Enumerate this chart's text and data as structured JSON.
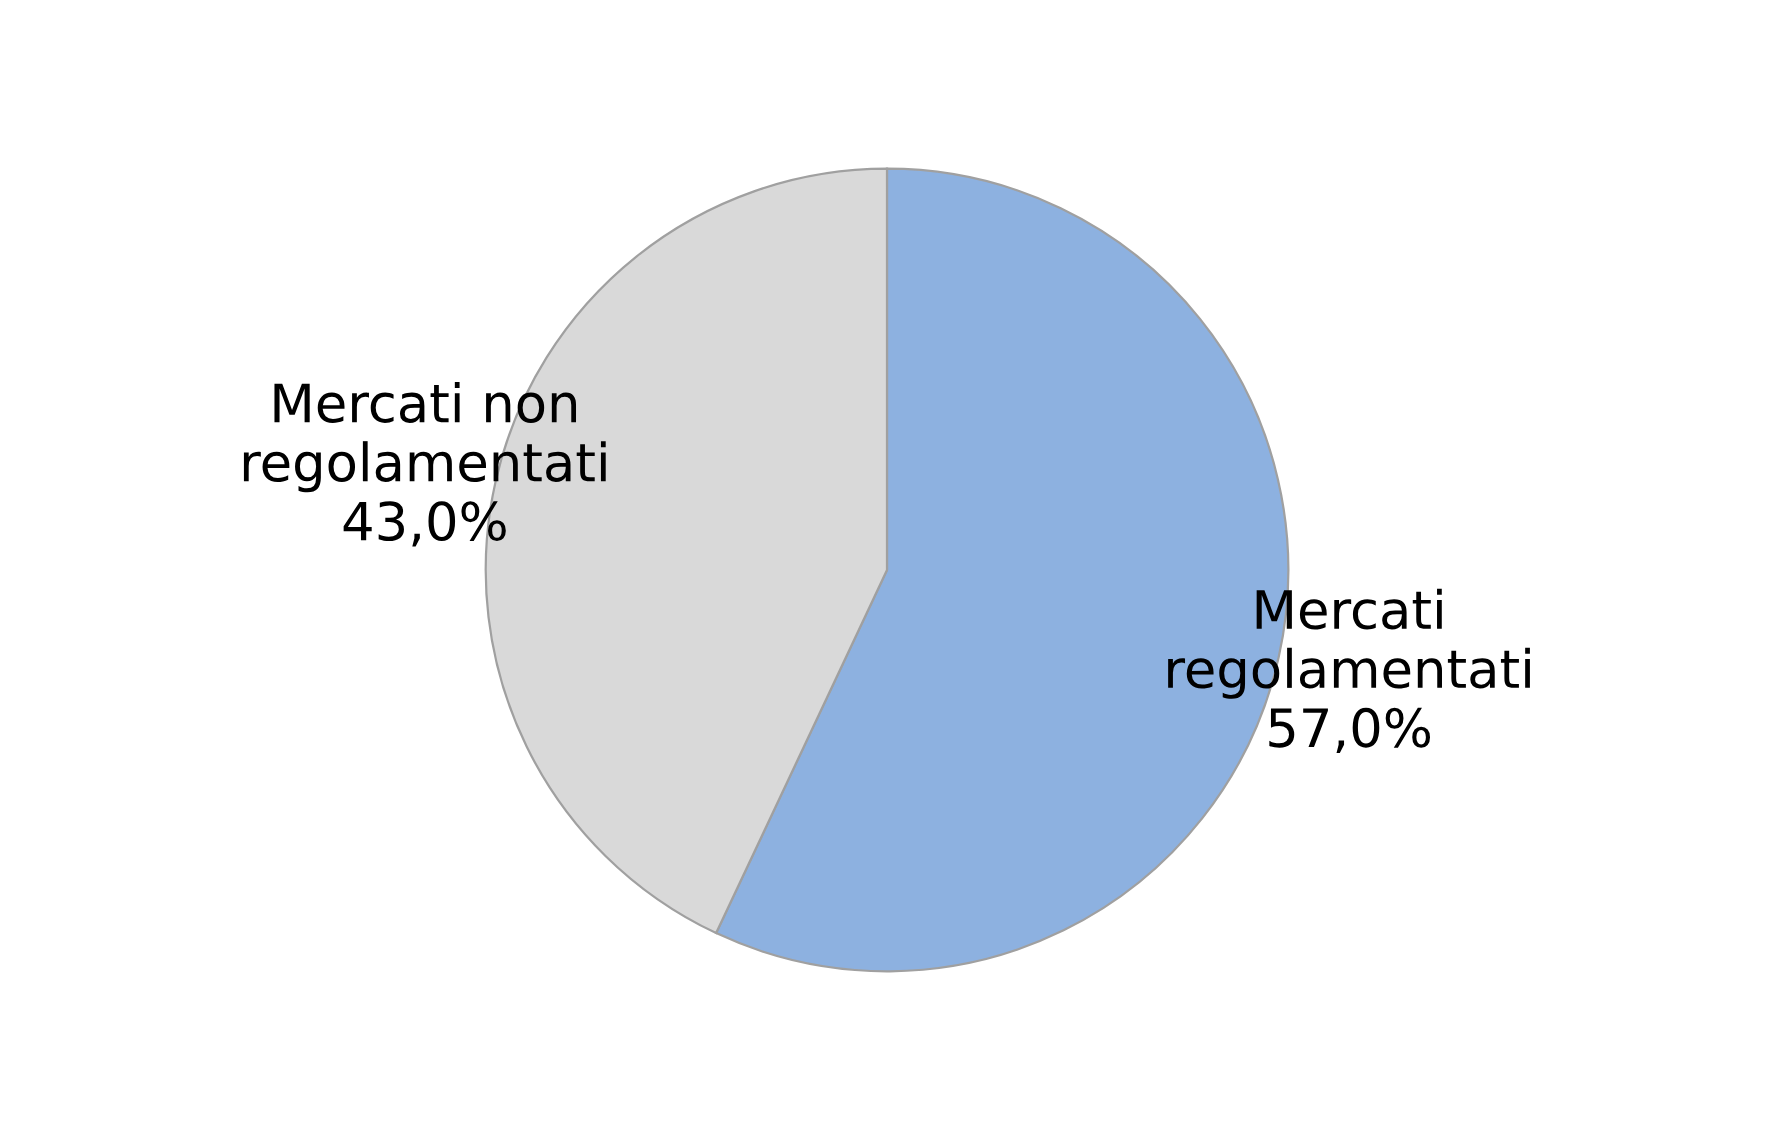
{
  "chart_data": {
    "type": "pie",
    "categories": [
      "Mercati\nregolamentati",
      "Mercati non\nregolamentati"
    ],
    "values": [
      57.0,
      43.0
    ],
    "value_labels": [
      "57,0%",
      "43,0%"
    ],
    "colors": [
      "#8db1e0",
      "#d9d9d9"
    ]
  }
}
